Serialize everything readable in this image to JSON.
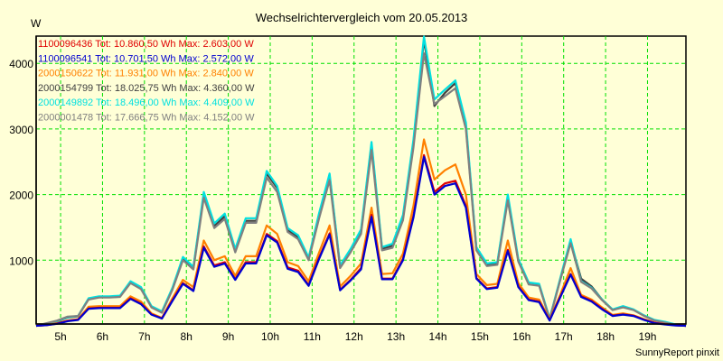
{
  "chart_data": {
    "type": "line",
    "title": "Wechselrichtervergleich vom 20.05.2013",
    "ylabel": "W",
    "xlabel": "",
    "credit": "SunnyReport pinxit",
    "ylim": [
      0,
      4400
    ],
    "xlim_hours": [
      4.4167,
      19.9167
    ],
    "grid": true,
    "legend_placement": "top-left",
    "y_ticks": [
      {
        "value": 1000,
        "label": "1000"
      },
      {
        "value": 2000,
        "label": "2000"
      },
      {
        "value": 3000,
        "label": "3000"
      },
      {
        "value": 4000,
        "label": "4000"
      }
    ],
    "x_ticks": [
      {
        "value": 5,
        "label": "5h"
      },
      {
        "value": 6,
        "label": "6h"
      },
      {
        "value": 7,
        "label": "7h"
      },
      {
        "value": 8,
        "label": "8h"
      },
      {
        "value": 9,
        "label": "9h"
      },
      {
        "value": 10,
        "label": "10h"
      },
      {
        "value": 11,
        "label": "11h"
      },
      {
        "value": 12,
        "label": "12h"
      },
      {
        "value": 13,
        "label": "13h"
      },
      {
        "value": 14,
        "label": "14h"
      },
      {
        "value": 15,
        "label": "15h"
      },
      {
        "value": 16,
        "label": "16h"
      },
      {
        "value": 17,
        "label": "17h"
      },
      {
        "value": 18,
        "label": "18h"
      },
      {
        "value": 19,
        "label": "19h"
      }
    ],
    "x_start_hour": 4.4167,
    "x_step_hours": 0.25,
    "series": [
      {
        "name": "1100096436",
        "legend": "1100096436 Tot: 10.860,50 Wh Max: 2.603,00 W",
        "color": "#e00000",
        "values": [
          0,
          10,
          35,
          75,
          95,
          265,
          275,
          275,
          275,
          420,
          340,
          175,
          115,
          390,
          650,
          540,
          1210,
          920,
          970,
          710,
          970,
          970,
          1400,
          1290,
          890,
          840,
          620,
          1040,
          1410,
          550,
          700,
          880,
          1690,
          720,
          720,
          1020,
          1680,
          2603,
          2040,
          2170,
          2210,
          1830,
          730,
          570,
          590,
          1160,
          600,
          400,
          370,
          85,
          440,
          790,
          450,
          380,
          260,
          155,
          175,
          155,
          95,
          45,
          25,
          8,
          0
        ]
      },
      {
        "name": "1100096541",
        "legend": "1100096541 Tot: 10.701,50 Wh Max: 2.572,00 W",
        "color": "#0000d0",
        "values": [
          0,
          10,
          30,
          70,
          90,
          260,
          270,
          270,
          270,
          410,
          330,
          170,
          110,
          380,
          640,
          530,
          1190,
          900,
          950,
          700,
          950,
          950,
          1380,
          1270,
          870,
          820,
          610,
          1020,
          1390,
          540,
          690,
          860,
          1660,
          710,
          710,
          1000,
          1650,
          2572,
          2000,
          2130,
          2170,
          1800,
          720,
          560,
          580,
          1140,
          590,
          390,
          360,
          80,
          430,
          780,
          440,
          370,
          250,
          150,
          170,
          150,
          90,
          40,
          20,
          5,
          0
        ]
      },
      {
        "name": "2000150622",
        "legend": "2000150622 Tot: 11.931,00 Wh Max: 2.840,00 W",
        "color": "#ff8000",
        "values": [
          0,
          15,
          40,
          80,
          100,
          290,
          300,
          300,
          300,
          450,
          370,
          190,
          120,
          420,
          700,
          590,
          1300,
          1000,
          1060,
          760,
          1060,
          1060,
          1530,
          1400,
          970,
          910,
          680,
          1120,
          1530,
          600,
          760,
          950,
          1800,
          790,
          800,
          1100,
          1830,
          2840,
          2230,
          2370,
          2460,
          2000,
          790,
          620,
          640,
          1300,
          650,
          430,
          400,
          95,
          470,
          880,
          470,
          400,
          280,
          165,
          190,
          160,
          100,
          50,
          25,
          8,
          0
        ]
      },
      {
        "name": "2000154799",
        "legend": "2000154799 Tot: 18.025,75 Wh Max: 4.360,00 W",
        "color": "#404040",
        "values": [
          0,
          28,
          68,
          125,
          145,
          410,
          440,
          440,
          450,
          670,
          580,
          290,
          210,
          570,
          1030,
          880,
          2000,
          1520,
          1670,
          1150,
          1600,
          1600,
          2320,
          2100,
          1460,
          1350,
          1020,
          1690,
          2290,
          900,
          1150,
          1440,
          2760,
          1170,
          1220,
          1660,
          2800,
          4360,
          3350,
          3550,
          3700,
          3050,
          1180,
          930,
          950,
          1960,
          1000,
          650,
          620,
          105,
          700,
          1290,
          720,
          600,
          400,
          245,
          290,
          245,
          155,
          85,
          55,
          18,
          0
        ]
      },
      {
        "name": "2000149892",
        "legend": "2000149892 Tot: 18.496,00 Wh Max: 4.409,00 W",
        "color": "#00e0e0",
        "values": [
          0,
          30,
          70,
          130,
          150,
          420,
          450,
          450,
          460,
          680,
          590,
          300,
          220,
          580,
          1050,
          900,
          2040,
          1560,
          1710,
          1170,
          1640,
          1640,
          2360,
          2130,
          1490,
          1380,
          1040,
          1720,
          2320,
          920,
          1170,
          1470,
          2800,
          1200,
          1250,
          1690,
          2840,
          4409,
          3450,
          3600,
          3740,
          3100,
          1200,
          950,
          970,
          2000,
          1020,
          660,
          640,
          110,
          720,
          1320,
          680,
          580,
          400,
          250,
          300,
          250,
          160,
          90,
          60,
          20,
          0
        ]
      },
      {
        "name": "2000001478",
        "legend": "2000001478 Tot: 17.666,75 Wh Max: 4.152,00 W",
        "color": "#808080",
        "values": [
          0,
          40,
          80,
          140,
          150,
          400,
          430,
          430,
          440,
          650,
          560,
          280,
          200,
          550,
          1000,
          860,
          1950,
          1490,
          1630,
          1120,
          1570,
          1570,
          2260,
          2040,
          1430,
          1320,
          1000,
          1640,
          2220,
          880,
          1120,
          1400,
          2680,
          1150,
          1190,
          1610,
          2720,
          4152,
          3380,
          3500,
          3620,
          3000,
          1150,
          910,
          930,
          1910,
          980,
          630,
          610,
          100,
          690,
          1260,
          670,
          570,
          390,
          240,
          280,
          240,
          150,
          80,
          50,
          15,
          0
        ]
      }
    ]
  }
}
